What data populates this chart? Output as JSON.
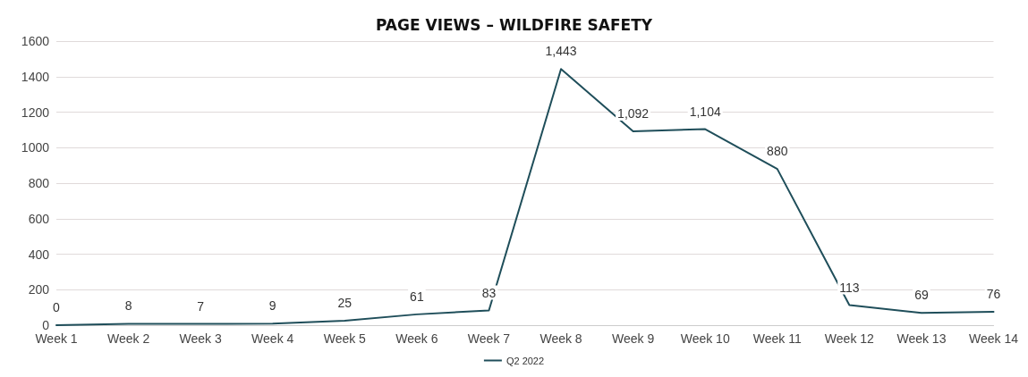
{
  "chart_data": {
    "type": "line",
    "title": "PAGE VIEWS – WILDFIRE SAFETY",
    "categories": [
      "Week 1",
      "Week 2",
      "Week 3",
      "Week 4",
      "Week 5",
      "Week 6",
      "Week 7",
      "Week 8",
      "Week 9",
      "Week 10",
      "Week 11",
      "Week 12",
      "Week 13",
      "Week 14"
    ],
    "series": [
      {
        "name": "Q2 2022",
        "color": "#1f4e5a",
        "values": [
          0,
          8,
          7,
          9,
          25,
          61,
          83,
          1443,
          1092,
          1104,
          880,
          113,
          69,
          76
        ]
      }
    ],
    "value_labels": [
      "0",
      "8",
      "7",
      "9",
      "25",
      "61",
      "83",
      "1,443",
      "1,092",
      "1,104",
      "880",
      "113",
      "69",
      "76"
    ],
    "ylim": [
      0,
      1600
    ],
    "yticks": [
      0,
      200,
      400,
      600,
      800,
      1000,
      1200,
      1400,
      1600
    ],
    "grid": "y",
    "legend": "bottom",
    "marker": "none",
    "line_style": "solid"
  }
}
